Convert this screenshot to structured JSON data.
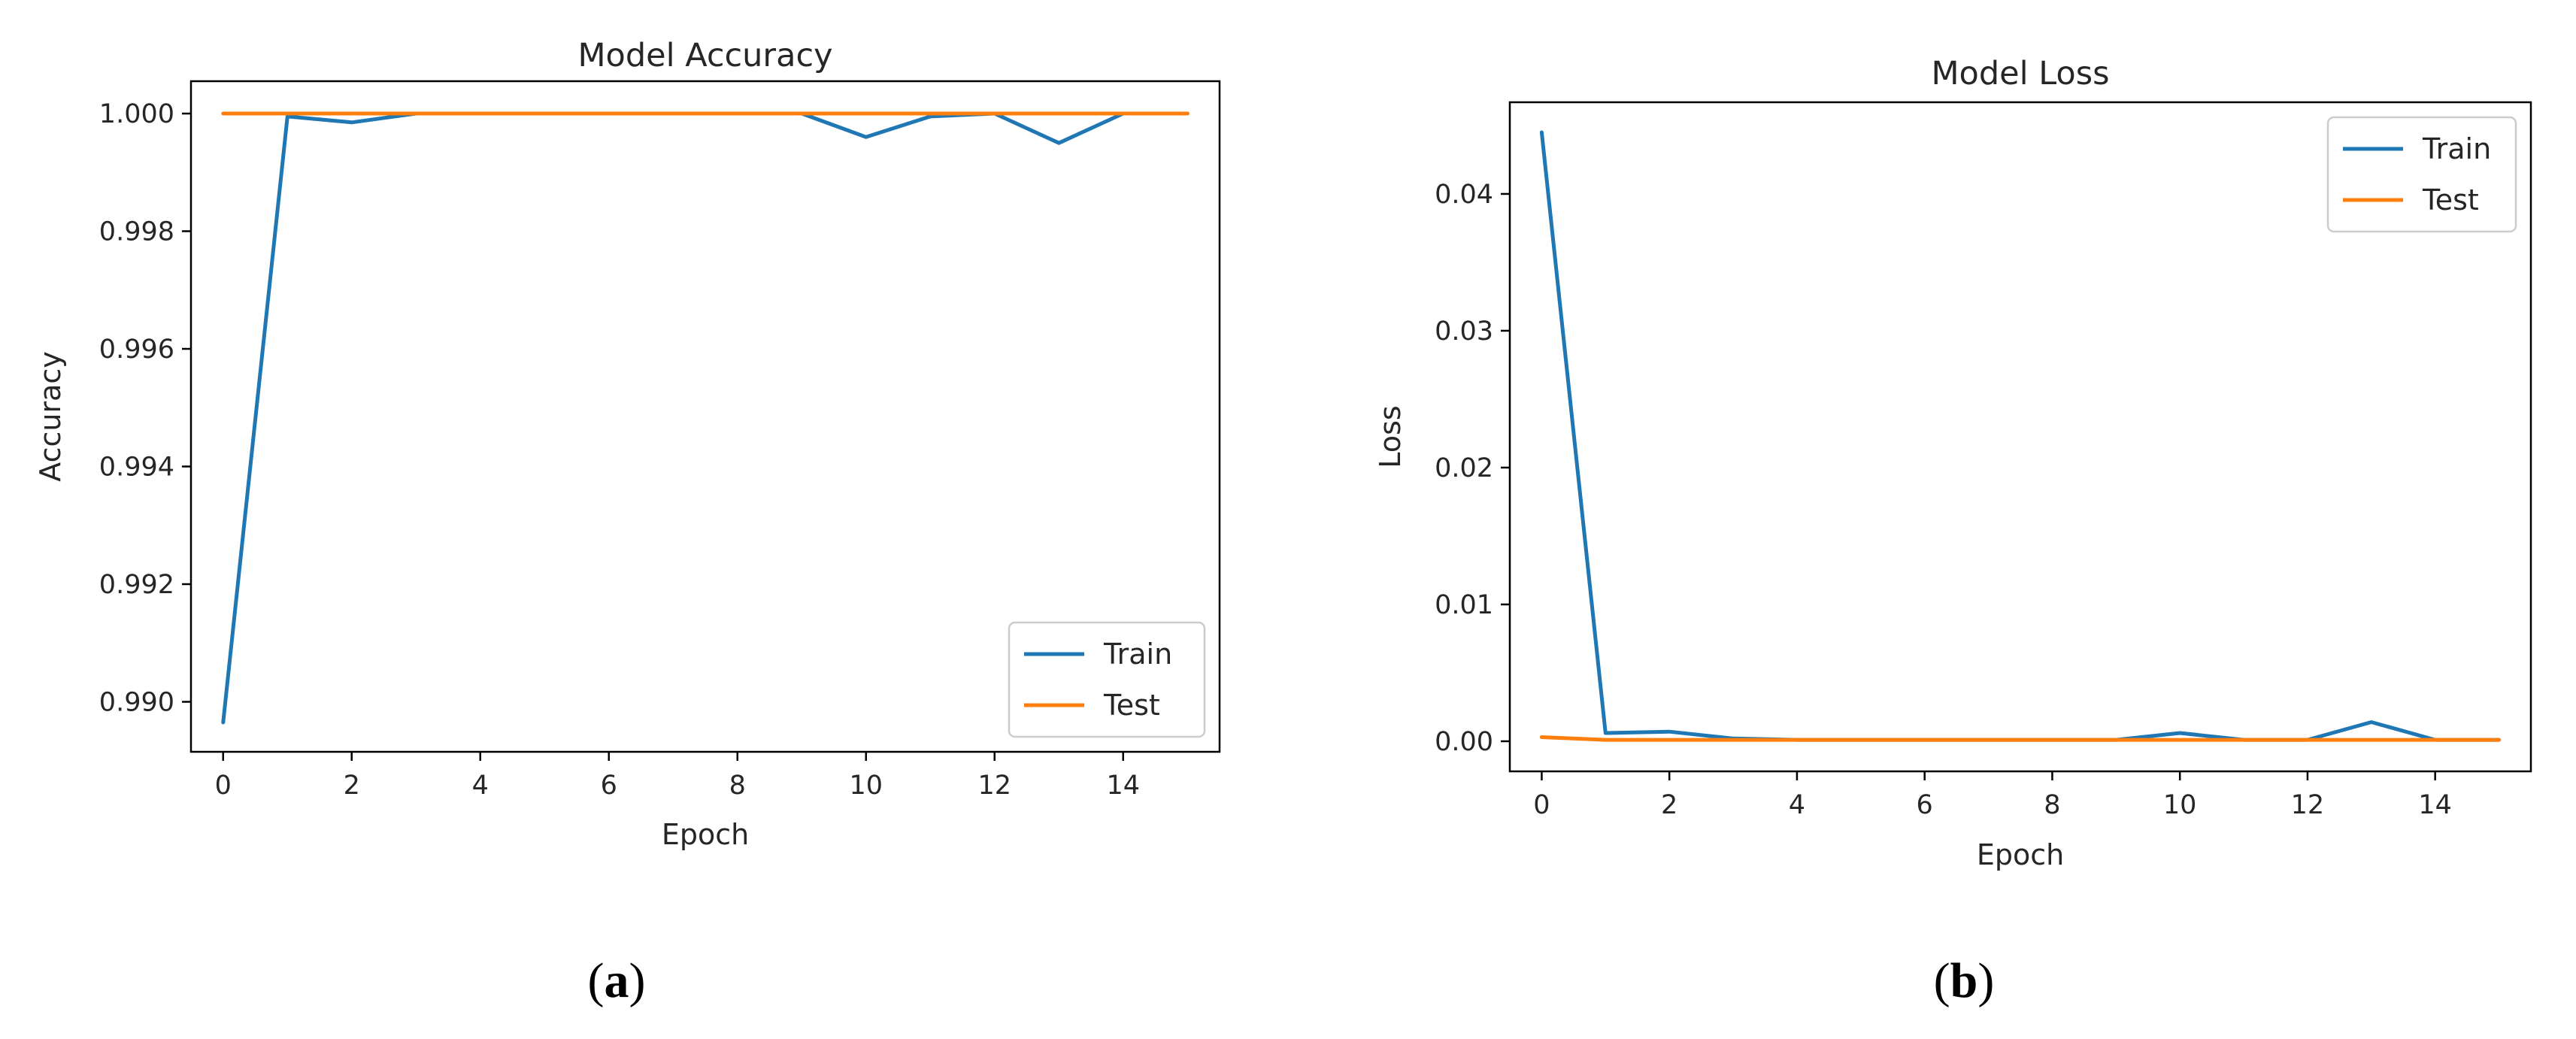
{
  "figure": {
    "panel_labels": [
      "a",
      "b"
    ]
  },
  "chart_data": [
    {
      "type": "line",
      "title": "Model Accuracy",
      "xlabel": "Epoch",
      "ylabel": "Accuracy",
      "xlim": [
        -0.5,
        15.5
      ],
      "ylim": [
        0.98915,
        1.00055
      ],
      "xticks": [
        0,
        2,
        4,
        6,
        8,
        10,
        12,
        14
      ],
      "xtick_labels": [
        "0",
        "2",
        "4",
        "6",
        "8",
        "10",
        "12",
        "14"
      ],
      "yticks": [
        0.99,
        0.992,
        0.994,
        0.996,
        0.998,
        1.0
      ],
      "ytick_labels": [
        "0.990",
        "0.992",
        "0.994",
        "0.996",
        "0.998",
        "1.000"
      ],
      "grid": false,
      "legend_position": "bottom-right",
      "x": [
        0,
        1,
        2,
        3,
        4,
        5,
        6,
        7,
        8,
        9,
        10,
        11,
        12,
        13,
        14,
        15
      ],
      "series": [
        {
          "name": "Train",
          "color": "#1f77b4",
          "values": [
            0.98965,
            0.99995,
            0.99985,
            1.0,
            1.0,
            1.0,
            1.0,
            1.0,
            1.0,
            1.0,
            0.9996,
            0.99995,
            1.0,
            0.9995,
            1.0,
            1.0
          ]
        },
        {
          "name": "Test",
          "color": "#ff7f0e",
          "values": [
            1.0,
            1.0,
            1.0,
            1.0,
            1.0,
            1.0,
            1.0,
            1.0,
            1.0,
            1.0,
            1.0,
            1.0,
            1.0,
            1.0,
            1.0,
            1.0
          ]
        }
      ]
    },
    {
      "type": "line",
      "title": "Model Loss",
      "xlabel": "Epoch",
      "ylabel": "Loss",
      "xlim": [
        -0.5,
        15.5
      ],
      "ylim": [
        -0.0022,
        0.0467
      ],
      "xticks": [
        0,
        2,
        4,
        6,
        8,
        10,
        12,
        14
      ],
      "xtick_labels": [
        "0",
        "2",
        "4",
        "6",
        "8",
        "10",
        "12",
        "14"
      ],
      "yticks": [
        0.0,
        0.01,
        0.02,
        0.03,
        0.04
      ],
      "ytick_labels": [
        "0.00",
        "0.01",
        "0.02",
        "0.03",
        "0.04"
      ],
      "grid": false,
      "legend_position": "top-right",
      "x": [
        0,
        1,
        2,
        3,
        4,
        5,
        6,
        7,
        8,
        9,
        10,
        11,
        12,
        13,
        14,
        15
      ],
      "series": [
        {
          "name": "Train",
          "color": "#1f77b4",
          "values": [
            0.0445,
            0.0006,
            0.0007,
            0.0002,
            0.0001,
            0.0001,
            0.0001,
            0.0001,
            0.0001,
            0.0001,
            0.0006,
            0.0001,
            0.0001,
            0.0014,
            0.0001,
            0.0001
          ]
        },
        {
          "name": "Test",
          "color": "#ff7f0e",
          "values": [
            0.0003,
            0.0001,
            0.0001,
            0.0001,
            0.0001,
            0.0001,
            0.0001,
            0.0001,
            0.0001,
            0.0001,
            0.0001,
            0.0001,
            0.0001,
            0.0001,
            0.0001,
            0.0001
          ]
        }
      ]
    }
  ]
}
